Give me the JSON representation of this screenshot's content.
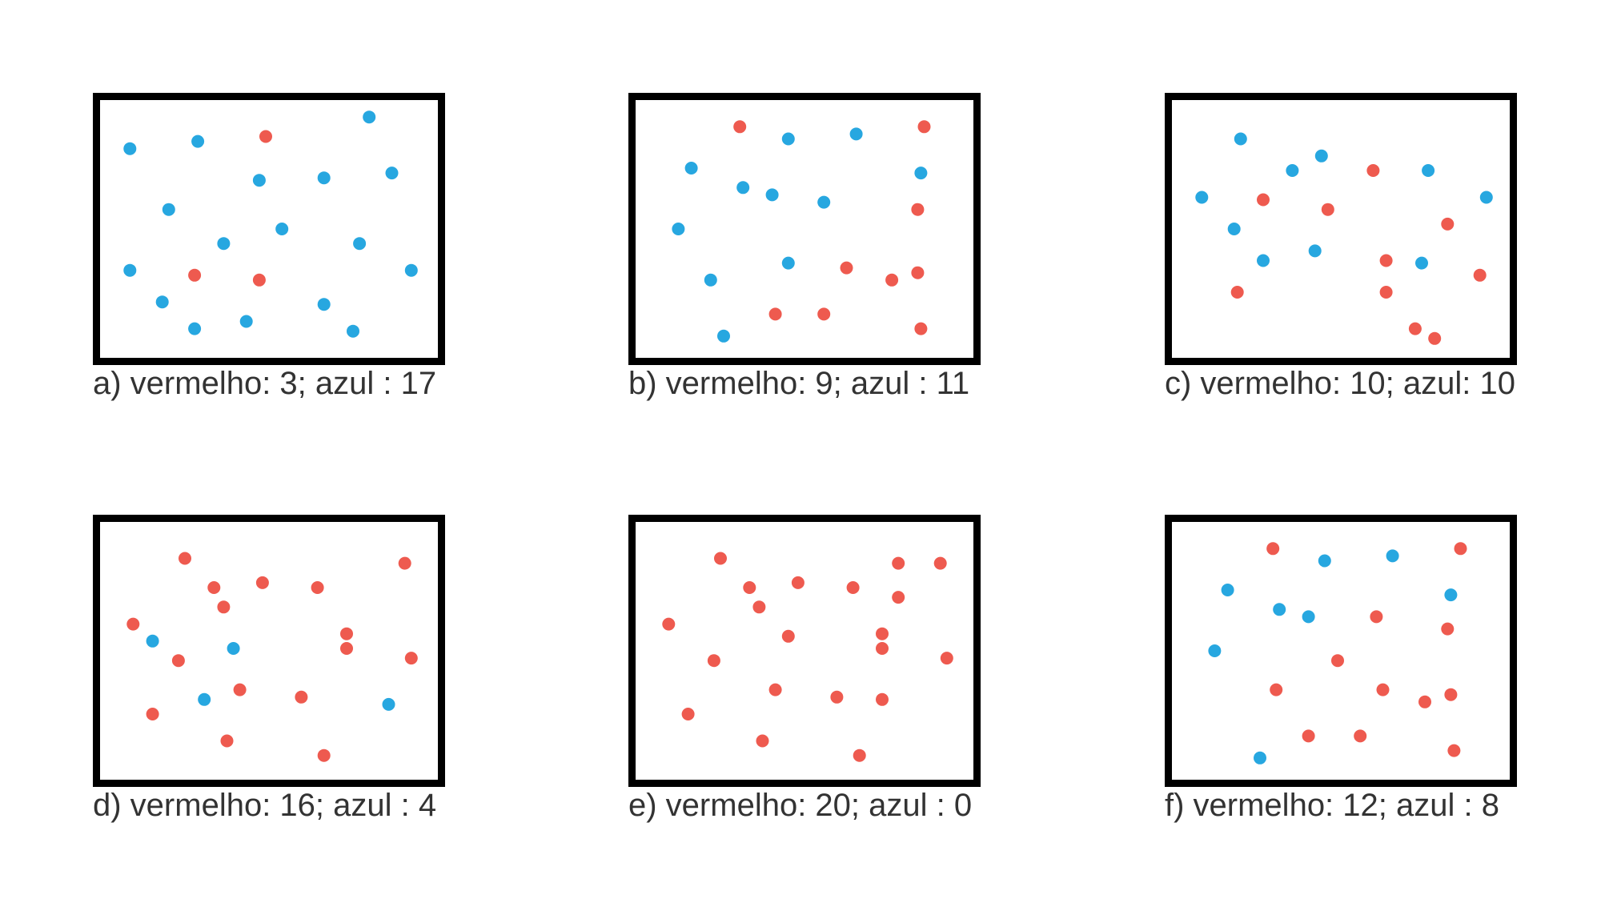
{
  "colors": {
    "red": "#ee5a4f",
    "blue": "#27a7e0",
    "frame": "#000000"
  },
  "panels": [
    {
      "caption": "a) vermelho: 3; azul : 17",
      "dots": [
        [
          "blue",
          0.07,
          0.17
        ],
        [
          "blue",
          0.28,
          0.14
        ],
        [
          "red",
          0.49,
          0.12
        ],
        [
          "blue",
          0.81,
          0.04
        ],
        [
          "blue",
          0.67,
          0.29
        ],
        [
          "blue",
          0.88,
          0.27
        ],
        [
          "blue",
          0.47,
          0.3
        ],
        [
          "blue",
          0.19,
          0.42
        ],
        [
          "blue",
          0.54,
          0.5
        ],
        [
          "blue",
          0.36,
          0.56
        ],
        [
          "blue",
          0.78,
          0.56
        ],
        [
          "blue",
          0.07,
          0.67
        ],
        [
          "red",
          0.27,
          0.69
        ],
        [
          "red",
          0.47,
          0.71
        ],
        [
          "blue",
          0.94,
          0.67
        ],
        [
          "blue",
          0.17,
          0.8
        ],
        [
          "blue",
          0.67,
          0.81
        ],
        [
          "blue",
          0.27,
          0.91
        ],
        [
          "blue",
          0.43,
          0.88
        ],
        [
          "blue",
          0.76,
          0.92
        ]
      ]
    },
    {
      "caption": "b) vermelho: 9; azul : 11",
      "dots": [
        [
          "red",
          0.3,
          0.08
        ],
        [
          "blue",
          0.45,
          0.13
        ],
        [
          "blue",
          0.66,
          0.11
        ],
        [
          "red",
          0.87,
          0.08
        ],
        [
          "blue",
          0.15,
          0.25
        ],
        [
          "blue",
          0.86,
          0.27
        ],
        [
          "blue",
          0.31,
          0.33
        ],
        [
          "blue",
          0.4,
          0.36
        ],
        [
          "blue",
          0.56,
          0.39
        ],
        [
          "red",
          0.85,
          0.42
        ],
        [
          "blue",
          0.11,
          0.5
        ],
        [
          "blue",
          0.45,
          0.64
        ],
        [
          "red",
          0.63,
          0.66
        ],
        [
          "red",
          0.77,
          0.71
        ],
        [
          "red",
          0.85,
          0.68
        ],
        [
          "blue",
          0.21,
          0.71
        ],
        [
          "red",
          0.41,
          0.85
        ],
        [
          "red",
          0.56,
          0.85
        ],
        [
          "red",
          0.86,
          0.91
        ],
        [
          "blue",
          0.25,
          0.94
        ]
      ]
    },
    {
      "caption": "c) vermelho: 10; azul: 10",
      "dots": [
        [
          "blue",
          0.19,
          0.13
        ],
        [
          "blue",
          0.35,
          0.26
        ],
        [
          "blue",
          0.44,
          0.2
        ],
        [
          "red",
          0.6,
          0.26
        ],
        [
          "blue",
          0.77,
          0.26
        ],
        [
          "blue",
          0.07,
          0.37
        ],
        [
          "red",
          0.26,
          0.38
        ],
        [
          "red",
          0.46,
          0.42
        ],
        [
          "blue",
          0.95,
          0.37
        ],
        [
          "blue",
          0.17,
          0.5
        ],
        [
          "red",
          0.83,
          0.48
        ],
        [
          "blue",
          0.26,
          0.63
        ],
        [
          "blue",
          0.42,
          0.59
        ],
        [
          "red",
          0.64,
          0.63
        ],
        [
          "blue",
          0.75,
          0.64
        ],
        [
          "red",
          0.93,
          0.69
        ],
        [
          "red",
          0.18,
          0.76
        ],
        [
          "red",
          0.64,
          0.76
        ],
        [
          "red",
          0.73,
          0.91
        ],
        [
          "red",
          0.79,
          0.95
        ]
      ]
    },
    {
      "caption": "d) vermelho: 16; azul : 4",
      "dots": [
        [
          "red",
          0.24,
          0.12
        ],
        [
          "red",
          0.92,
          0.14
        ],
        [
          "red",
          0.33,
          0.24
        ],
        [
          "red",
          0.48,
          0.22
        ],
        [
          "red",
          0.65,
          0.24
        ],
        [
          "red",
          0.36,
          0.32
        ],
        [
          "red",
          0.08,
          0.39
        ],
        [
          "blue",
          0.14,
          0.46
        ],
        [
          "red",
          0.74,
          0.43
        ],
        [
          "red",
          0.74,
          0.49
        ],
        [
          "blue",
          0.39,
          0.49
        ],
        [
          "red",
          0.22,
          0.54
        ],
        [
          "red",
          0.94,
          0.53
        ],
        [
          "blue",
          0.3,
          0.7
        ],
        [
          "red",
          0.41,
          0.66
        ],
        [
          "red",
          0.6,
          0.69
        ],
        [
          "blue",
          0.87,
          0.72
        ],
        [
          "red",
          0.14,
          0.76
        ],
        [
          "red",
          0.37,
          0.87
        ],
        [
          "red",
          0.67,
          0.93
        ]
      ]
    },
    {
      "caption": "e) vermelho: 20; azul : 0",
      "dots": [
        [
          "red",
          0.24,
          0.12
        ],
        [
          "red",
          0.92,
          0.14
        ],
        [
          "red",
          0.33,
          0.24
        ],
        [
          "red",
          0.48,
          0.22
        ],
        [
          "red",
          0.65,
          0.24
        ],
        [
          "red",
          0.79,
          0.28
        ],
        [
          "red",
          0.36,
          0.32
        ],
        [
          "red",
          0.08,
          0.39
        ],
        [
          "red",
          0.74,
          0.43
        ],
        [
          "red",
          0.74,
          0.49
        ],
        [
          "red",
          0.45,
          0.44
        ],
        [
          "red",
          0.22,
          0.54
        ],
        [
          "red",
          0.94,
          0.53
        ],
        [
          "red",
          0.41,
          0.66
        ],
        [
          "red",
          0.6,
          0.69
        ],
        [
          "red",
          0.74,
          0.7
        ],
        [
          "red",
          0.14,
          0.76
        ],
        [
          "red",
          0.37,
          0.87
        ],
        [
          "red",
          0.67,
          0.93
        ],
        [
          "red",
          0.79,
          0.14
        ]
      ]
    },
    {
      "caption": "f) vermelho: 12; azul : 8",
      "dots": [
        [
          "red",
          0.29,
          0.08
        ],
        [
          "blue",
          0.45,
          0.13
        ],
        [
          "blue",
          0.66,
          0.11
        ],
        [
          "red",
          0.87,
          0.08
        ],
        [
          "blue",
          0.15,
          0.25
        ],
        [
          "blue",
          0.84,
          0.27
        ],
        [
          "blue",
          0.31,
          0.33
        ],
        [
          "blue",
          0.4,
          0.36
        ],
        [
          "red",
          0.61,
          0.36
        ],
        [
          "red",
          0.83,
          0.41
        ],
        [
          "blue",
          0.11,
          0.5
        ],
        [
          "red",
          0.49,
          0.54
        ],
        [
          "red",
          0.3,
          0.66
        ],
        [
          "red",
          0.63,
          0.66
        ],
        [
          "red",
          0.76,
          0.71
        ],
        [
          "red",
          0.84,
          0.68
        ],
        [
          "red",
          0.4,
          0.85
        ],
        [
          "red",
          0.56,
          0.85
        ],
        [
          "red",
          0.85,
          0.91
        ],
        [
          "blue",
          0.25,
          0.94
        ]
      ]
    }
  ]
}
